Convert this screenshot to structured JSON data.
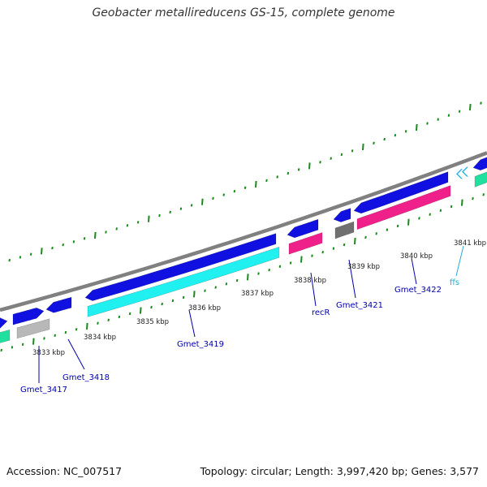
{
  "title": "Geobacter metallireducens GS-15, complete genome",
  "footer": {
    "accession": "Accession: NC_007517",
    "summary": "Topology: circular; Length: 3,997,420 bp; Genes: 3,577"
  },
  "colors": {
    "backbone": "#808080",
    "tick": "#1a8a1a",
    "cds_arrow": "#1010e0",
    "cds_bar": "#20f0f0",
    "rrna_bar": "#f0208a",
    "pseudo_bar": "#b8b8b8",
    "pseudo_dark": "#707070",
    "misc_bar": "#20e0a0",
    "rna_arrow": "#28b4e8",
    "gene_label": "#0000aa",
    "rna_label": "#2aaad8"
  },
  "kbp_ticks": [
    {
      "kbp": 3833,
      "label": "3833 kbp"
    },
    {
      "kbp": 3834,
      "label": "3834 kbp"
    },
    {
      "kbp": 3835,
      "label": "3835 kbp"
    },
    {
      "kbp": 3836,
      "label": "3836 kbp"
    },
    {
      "kbp": 3837,
      "label": "3837 kbp"
    },
    {
      "kbp": 3838,
      "label": "3838 kbp"
    },
    {
      "kbp": 3839,
      "label": "3839 kbp"
    },
    {
      "kbp": 3840,
      "label": "3840 kbp"
    },
    {
      "kbp": 3841,
      "label": "3841 kbp"
    }
  ],
  "gene_labels": [
    {
      "name": "Gmet_3417",
      "kind": "cds"
    },
    {
      "name": "Gmet_3418",
      "kind": "cds"
    },
    {
      "name": "Gmet_3419",
      "kind": "cds"
    },
    {
      "name": "recR",
      "kind": "cds"
    },
    {
      "name": "Gmet_3421",
      "kind": "cds"
    },
    {
      "name": "Gmet_3422",
      "kind": "cds"
    },
    {
      "name": "ffs",
      "kind": "rna"
    }
  ]
}
